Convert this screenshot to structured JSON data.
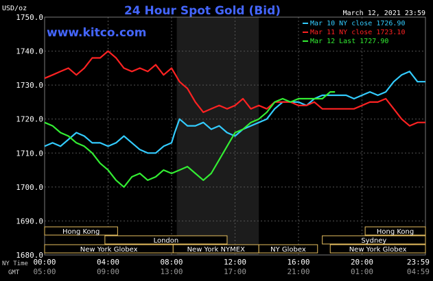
{
  "chart_data": {
    "type": "line",
    "title": "24 Hour Spot Gold (Bid)",
    "date": "March 12, 2021 23:59",
    "watermark": "www.kitco.com",
    "y_unit": "USD/oz",
    "ylim": [
      1680,
      1750
    ],
    "y_ticks": [
      "1750.0",
      "1740.0",
      "1730.0",
      "1720.0",
      "1710.0",
      "1700.0",
      "1690.0",
      "1680.0"
    ],
    "y_tick_values": [
      1750,
      1740,
      1730,
      1720,
      1710,
      1700,
      1690,
      1680
    ],
    "x_row_labels": [
      "NY Time",
      "GMT"
    ],
    "x_ticks_ny": [
      "00:00",
      "04:00",
      "08:00",
      "12:00",
      "16:00",
      "20:00",
      "23:59"
    ],
    "x_ticks_gmt": [
      "05:00",
      "09:00",
      "13:00",
      "17:00",
      "21:00",
      "01:00",
      "04:59"
    ],
    "x_tick_hours": [
      0,
      4,
      8,
      12,
      16,
      20,
      24
    ],
    "legend": [
      {
        "label": "Mar 10 NY close 1726.90",
        "color": "#33ccff"
      },
      {
        "label": "Mar 11 NY close 1723.10",
        "color": "#ff2222"
      },
      {
        "label": "Mar 12 Last 1727.90",
        "color": "#33ee33"
      }
    ],
    "sessions": [
      {
        "name": "Hong Kong",
        "start": 0,
        "end": 4.6,
        "row": 0
      },
      {
        "name": "Hong Kong",
        "start": 20.2,
        "end": 24,
        "row": 0
      },
      {
        "name": "London",
        "start": 3.8,
        "end": 11.5,
        "row": 1
      },
      {
        "name": "Sydney",
        "start": 17.5,
        "end": 24,
        "row": 1
      },
      {
        "name": "New York Globex",
        "start": 0,
        "end": 8.1,
        "row": 2
      },
      {
        "name": "New York NYMEX",
        "start": 8.1,
        "end": 13.5,
        "row": 2
      },
      {
        "name": "NY Globex",
        "start": 13.5,
        "end": 17.2,
        "row": 2
      },
      {
        "name": "New York Globex",
        "start": 18.0,
        "end": 24,
        "row": 2
      }
    ],
    "shaded_region": {
      "start": 8.33,
      "end": 13.5
    },
    "series": [
      {
        "name": "Mar 10 NY close 1726.90",
        "color": "#33ccff",
        "x": [
          0,
          0.5,
          1,
          1.5,
          2,
          2.5,
          3,
          3.5,
          4,
          4.5,
          5,
          5.5,
          6,
          6.5,
          7,
          7.5,
          8,
          8.2,
          8.5,
          9,
          9.5,
          10,
          10.5,
          11,
          11.5,
          12,
          12.5,
          13,
          13.5,
          14,
          14.5,
          15,
          15.5,
          16,
          16.5,
          17,
          17.5,
          18,
          18.5,
          19,
          19.5,
          20,
          20.5,
          21,
          21.5,
          22,
          22.5,
          23,
          23.5,
          24
        ],
        "values": [
          1712,
          1713,
          1712,
          1714,
          1716,
          1715,
          1713,
          1713,
          1712,
          1713,
          1715,
          1713,
          1711,
          1710,
          1710,
          1712,
          1713,
          1716,
          1720,
          1718,
          1718,
          1719,
          1717,
          1718,
          1716,
          1715,
          1717,
          1718,
          1719,
          1720,
          1723,
          1725,
          1725,
          1725,
          1724,
          1726,
          1727,
          1727,
          1727,
          1727,
          1726,
          1727,
          1728,
          1727,
          1728,
          1731,
          1733,
          1734,
          1731,
          1731
        ]
      },
      {
        "name": "Mar 11 NY close 1723.10",
        "color": "#ff2222",
        "x": [
          0,
          0.5,
          1,
          1.5,
          2,
          2.5,
          3,
          3.5,
          4,
          4.5,
          5,
          5.5,
          6,
          6.5,
          7,
          7.5,
          8,
          8.5,
          9,
          9.5,
          10,
          10.5,
          11,
          11.5,
          12,
          12.5,
          13,
          13.5,
          14,
          14.5,
          15,
          15.5,
          16,
          16.5,
          17,
          17.5,
          18,
          18.5,
          19,
          19.5,
          20,
          20.5,
          21,
          21.5,
          22,
          22.5,
          23,
          23.5,
          24
        ],
        "values": [
          1732,
          1733,
          1734,
          1735,
          1733,
          1735,
          1738,
          1738,
          1740,
          1738,
          1735,
          1734,
          1735,
          1734,
          1736,
          1733,
          1735,
          1731,
          1729,
          1725,
          1722,
          1723,
          1724,
          1723,
          1724,
          1726,
          1723,
          1724,
          1723,
          1725,
          1725,
          1725,
          1724,
          1724,
          1725,
          1723,
          1723,
          1723,
          1723,
          1723,
          1724,
          1725,
          1725,
          1726,
          1723,
          1720,
          1718,
          1719,
          1719
        ]
      },
      {
        "name": "Mar 12 Last 1727.90",
        "color": "#33ee33",
        "x": [
          0,
          0.5,
          1,
          1.5,
          2,
          2.5,
          3,
          3.5,
          4,
          4.5,
          5,
          5.5,
          6,
          6.5,
          7,
          7.5,
          8,
          8.5,
          9,
          9.5,
          10,
          10.5,
          11,
          11.5,
          12,
          12.5,
          13,
          13.5,
          14,
          14.5,
          15,
          15.5,
          16,
          16.5,
          17,
          17.5,
          18,
          18.3
        ],
        "values": [
          1719,
          1718,
          1716,
          1715,
          1713,
          1712,
          1710,
          1707,
          1705,
          1702,
          1700,
          1703,
          1704,
          1702,
          1703,
          1705,
          1704,
          1705,
          1706,
          1704,
          1702,
          1704,
          1708,
          1712,
          1716,
          1717,
          1719,
          1720,
          1722,
          1725,
          1726,
          1725,
          1726,
          1726,
          1726,
          1726,
          1728,
          1728
        ]
      }
    ]
  }
}
